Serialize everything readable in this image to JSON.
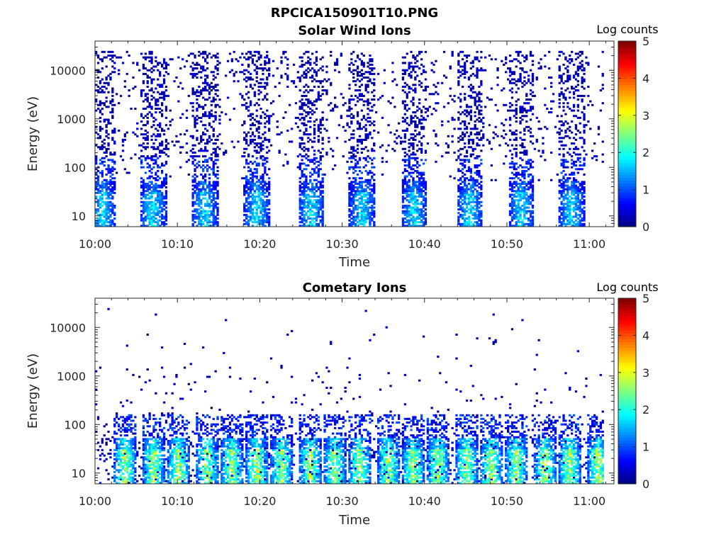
{
  "figure_title": "RPCICA150901T10.PNG",
  "colormap": "jet",
  "chart_data": [
    {
      "type": "heatmap",
      "title": "Solar Wind Ions",
      "xlabel": "Time",
      "ylabel": "Energy (eV)",
      "yscale": "log",
      "xlim_minutes": [
        0,
        63
      ],
      "ylim": [
        6,
        40000
      ],
      "xticks": [
        "10:00",
        "10:10",
        "10:20",
        "10:30",
        "10:40",
        "10:50",
        "11:00"
      ],
      "yticks": [
        "10",
        "100",
        "1000",
        "10000"
      ],
      "colorbar": {
        "label": "Log counts",
        "min": 0,
        "max": 5,
        "ticks": [
          "0",
          "1",
          "2",
          "3",
          "4",
          "5"
        ]
      },
      "pattern": {
        "burst_centers_minutes": [
          0.8,
          6.9,
          13.2,
          19.5,
          26.1,
          32.3,
          38.6,
          45.4,
          51.6,
          57.7
        ],
        "burst_half_width_minutes": 1.6,
        "low_energy_peak_log_counts": 2.2,
        "background": "sparse single counts (log counts 0-0.5) across 100-20000 eV"
      }
    },
    {
      "type": "heatmap",
      "title": "Cometary Ions",
      "xlabel": "Time",
      "ylabel": "Energy (eV)",
      "yscale": "log",
      "xlim_minutes": [
        0,
        63
      ],
      "ylim": [
        6,
        40000
      ],
      "xticks": [
        "10:00",
        "10:10",
        "10:20",
        "10:30",
        "10:40",
        "10:50",
        "11:00"
      ],
      "yticks": [
        "10",
        "100",
        "1000",
        "10000"
      ],
      "colorbar": {
        "label": "Log counts",
        "min": 0,
        "max": 5,
        "ticks": [
          "0",
          "1",
          "2",
          "3",
          "4",
          "5"
        ]
      },
      "pattern": {
        "burst_centers_minutes": [
          3.5,
          7.0,
          10.0,
          13.5,
          16.5,
          19.5,
          22.5,
          26.0,
          29.0,
          32.0,
          35.5,
          38.5,
          41.5,
          45.0,
          48.0,
          51.0,
          54.5,
          57.5,
          61.0
        ],
        "burst_half_width_minutes": 1.3,
        "low_energy_peak_log_counts": 3.3,
        "background": "sparse single counts (log counts 0-0.5) across 150-25000 eV"
      }
    }
  ]
}
